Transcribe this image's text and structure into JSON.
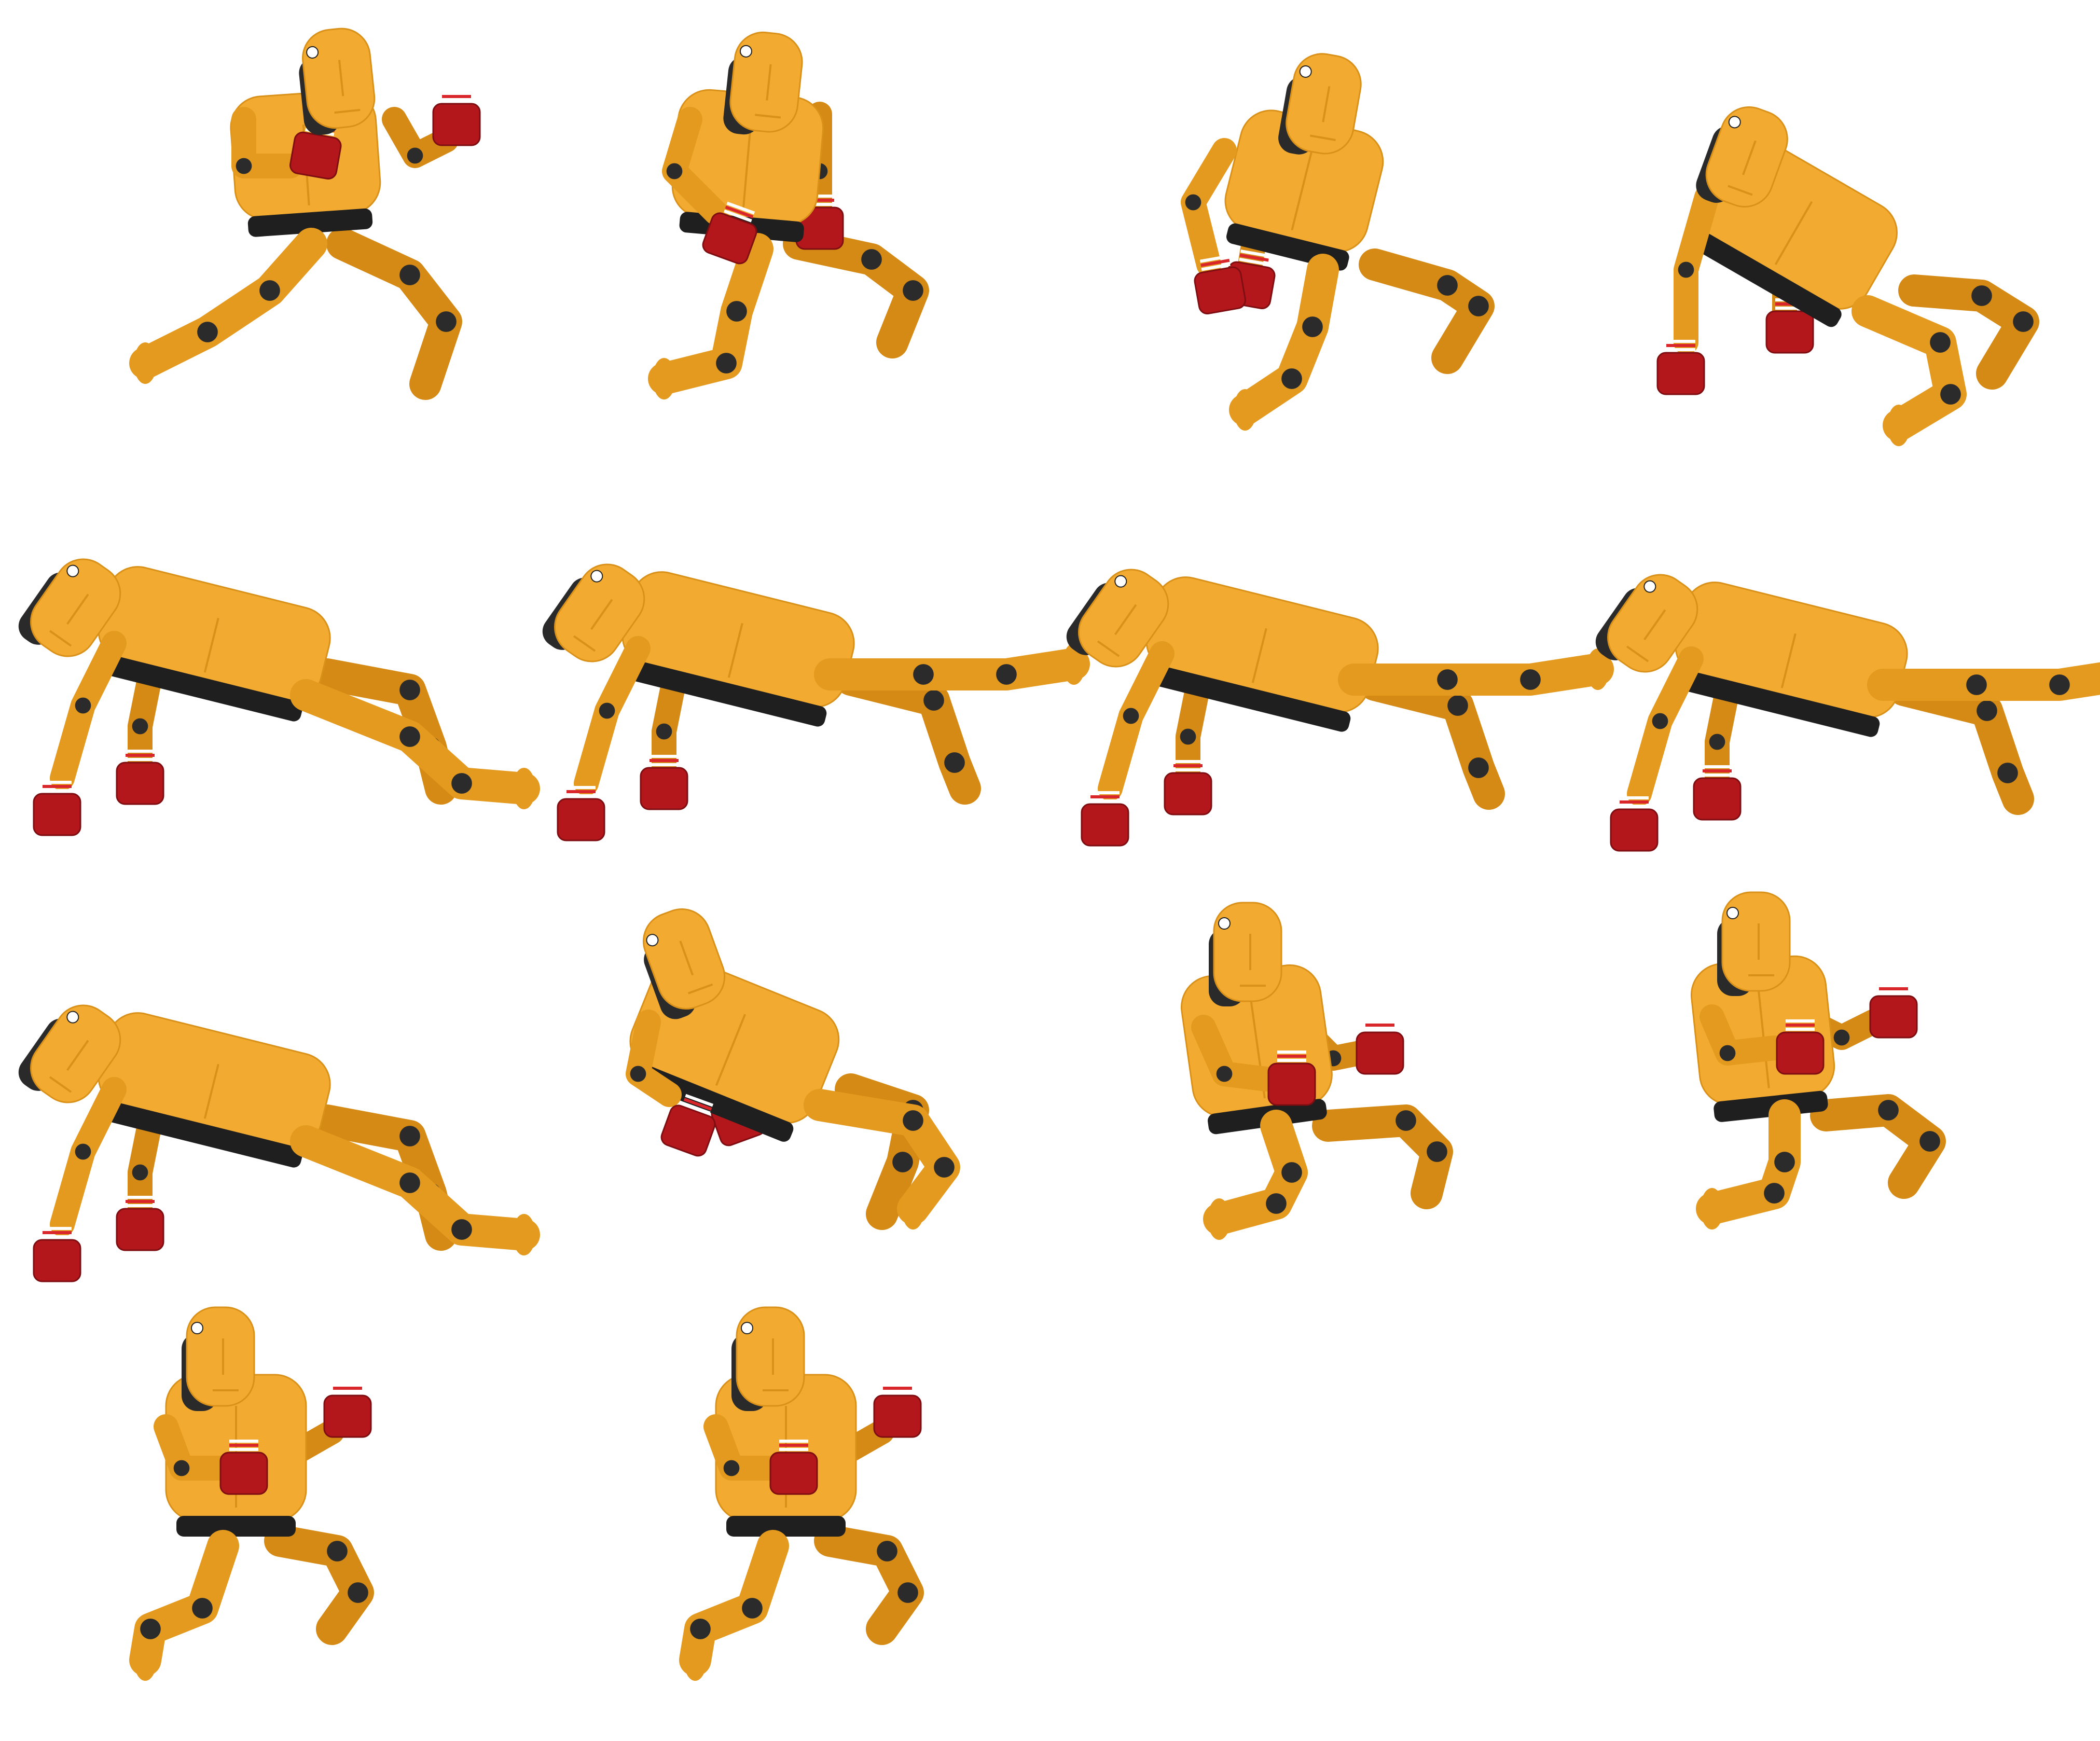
{
  "sprite_sheet": {
    "character": "crash-test-dummy-boxer",
    "colors": {
      "body": "#f2ab30",
      "body_shadow": "#e39a1e",
      "joints": "#2b2b2b",
      "shorts": "#1f1f1f",
      "gloves": "#b3171b",
      "cuff_stripe": "#d8262b",
      "background": "#ffffff"
    },
    "frames": [
      {
        "pose": "guard-lean-back"
      },
      {
        "pose": "guard-drop"
      },
      {
        "pose": "falling-arms-down"
      },
      {
        "pose": "falling-tilt"
      },
      {
        "pose": "down-legs-bent"
      },
      {
        "pose": "down-leg-extended"
      },
      {
        "pose": "down-leg-extended"
      },
      {
        "pose": "down-leg-extended"
      },
      {
        "pose": "down-legs-bent"
      },
      {
        "pose": "rising-tilt"
      },
      {
        "pose": "rising-kneel"
      },
      {
        "pose": "rising-kneel-guard"
      },
      {
        "pose": "guard-stance"
      },
      {
        "pose": "guard-stance"
      }
    ]
  }
}
